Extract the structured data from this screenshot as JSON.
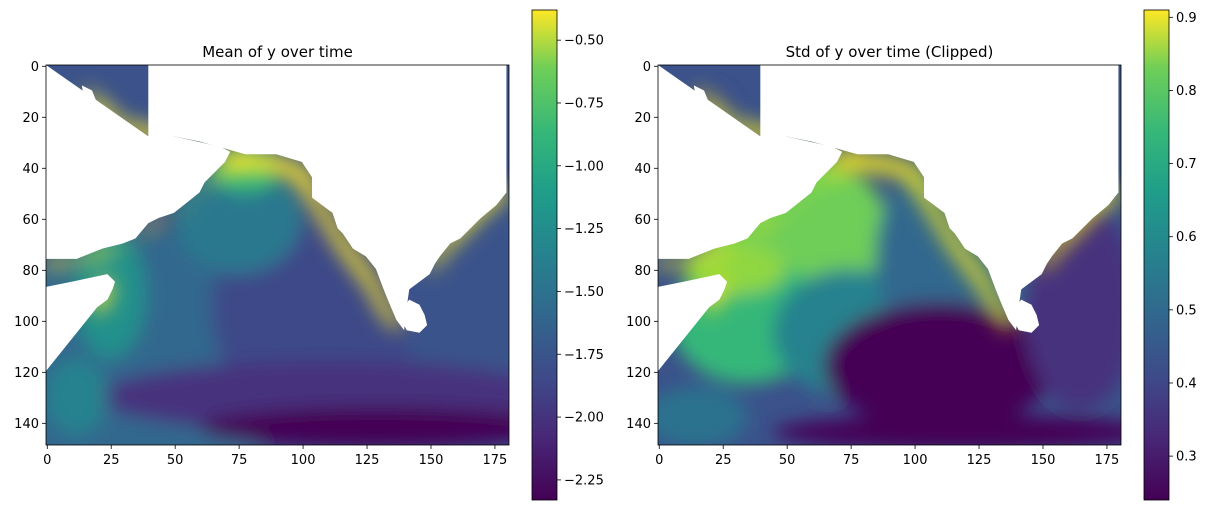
{
  "chart_data": [
    {
      "type": "heatmap",
      "title": "Mean of y over time",
      "xlim": [
        0,
        181
      ],
      "ylim": [
        149,
        0
      ],
      "xticks": [
        0,
        25,
        50,
        75,
        100,
        125,
        150,
        175
      ],
      "yticks": [
        0,
        20,
        40,
        60,
        80,
        100,
        120,
        140
      ],
      "colormap": "viridis",
      "colorbar": {
        "range": [
          -2.33,
          -0.38
        ],
        "ticks": [
          -0.5,
          -0.75,
          -1.0,
          -1.25,
          -1.5,
          -1.75,
          -2.0,
          -2.25
        ],
        "tick_labels": [
          "−0.50",
          "−0.75",
          "−1.00",
          "−1.25",
          "−1.50",
          "−1.75",
          "−2.00",
          "−2.25"
        ]
      }
    },
    {
      "type": "heatmap",
      "title": "Std of y over time (Clipped)",
      "xlim": [
        0,
        181
      ],
      "ylim": [
        149,
        0
      ],
      "xticks": [
        0,
        25,
        50,
        75,
        100,
        125,
        150,
        175
      ],
      "yticks": [
        0,
        20,
        40,
        60,
        80,
        100,
        120,
        140
      ],
      "colormap": "viridis",
      "colorbar": {
        "range": [
          0.24,
          0.91
        ],
        "ticks": [
          0.9,
          0.8,
          0.7,
          0.6,
          0.5,
          0.4,
          0.3
        ],
        "tick_labels": [
          "0.9",
          "0.8",
          "0.7",
          "0.6",
          "0.5",
          "0.4",
          "0.3"
        ]
      }
    }
  ]
}
